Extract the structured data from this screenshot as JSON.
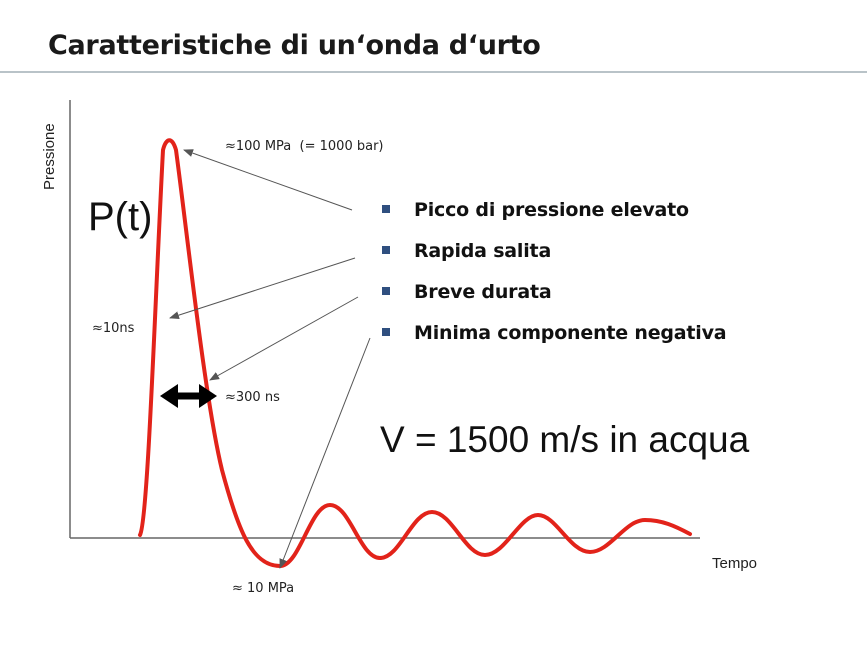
{
  "title": "Caratteristiche di un‘onda d‘urto",
  "diagram": {
    "y_axis_label": "Pressione",
    "x_axis_label": "Tempo",
    "curve_label": "P(t)",
    "annotations": {
      "peak": "≈100 MPa  (= 1000 bar)",
      "rise": "≈10ns",
      "duration": "≈300 ns",
      "negative": "≈ 10 MPa"
    },
    "speed": "V = 1500 m/s in acqua",
    "colors": {
      "curve": "#e2231a",
      "arrow": "#000000",
      "bullet": "#2f4f7f"
    }
  },
  "bullets": [
    "Picco di pressione elevato",
    "Rapida salita",
    "Breve durata",
    "Minima componente negativa"
  ]
}
